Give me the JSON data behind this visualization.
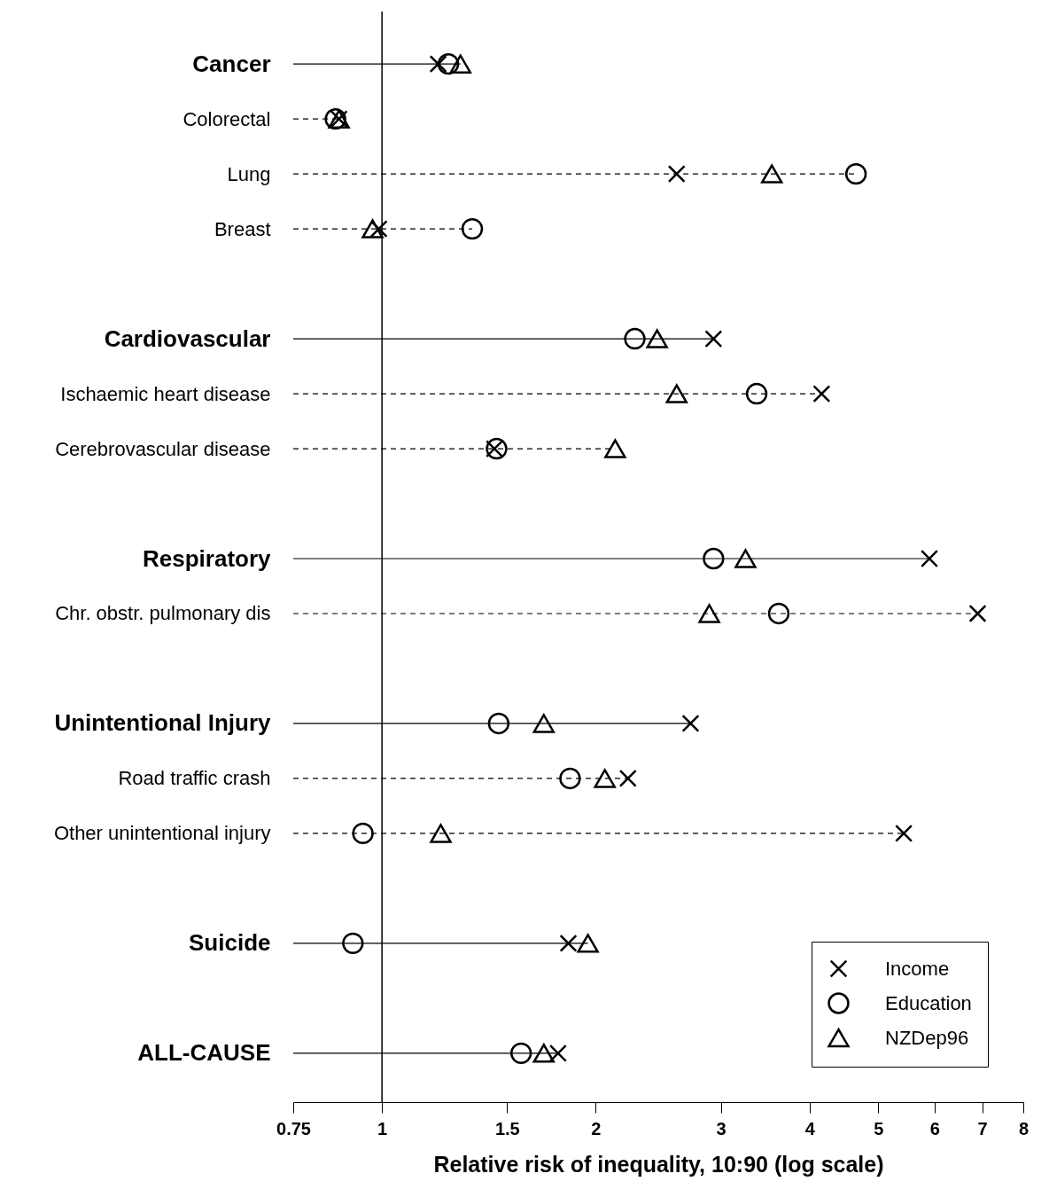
{
  "chart_data": {
    "type": "scatter",
    "orientation": "horizontal",
    "xlabel": "Relative risk of inequality, 10:90 (log scale)",
    "categories": [
      "Cancer",
      "Colorectal",
      "Lung",
      "Breast",
      null,
      "Cardiovascular",
      "Ischaemic heart disease",
      "Cerebrovascular disease",
      null,
      "Respiratory",
      "Chr. obstr. pulmonary dis",
      null,
      "Unintentional Injury",
      "Road traffic crash",
      "Other unintentional injury",
      null,
      "Suicide",
      null,
      "ALL-CAUSE"
    ],
    "series": [
      {
        "name": "Income",
        "color": "#000000",
        "marker": "cross",
        "values": [
          1.2,
          0.87,
          2.6,
          0.99,
          null,
          2.93,
          4.16,
          1.44,
          null,
          5.9,
          6.9,
          null,
          2.72,
          2.22,
          5.43,
          null,
          1.83,
          null,
          1.77
        ]
      },
      {
        "name": "Education",
        "color": "#000000",
        "marker": "circle",
        "values": [
          1.24,
          0.86,
          4.65,
          1.34,
          null,
          2.27,
          3.37,
          1.45,
          null,
          2.93,
          3.62,
          null,
          1.46,
          1.84,
          0.94,
          null,
          0.91,
          null,
          1.57
        ]
      },
      {
        "name": "NZDep96",
        "color": "#000000",
        "marker": "triangle",
        "values": [
          1.29,
          0.87,
          3.54,
          0.97,
          null,
          2.44,
          2.6,
          2.13,
          null,
          3.25,
          2.89,
          null,
          1.69,
          2.06,
          1.21,
          null,
          1.95,
          null,
          1.69
        ]
      }
    ],
    "log": "x",
    "xlim": [
      0.75,
      8
    ],
    "xticks": [
      0.75,
      1,
      1.5,
      2,
      3,
      4,
      5,
      6,
      7,
      8
    ],
    "grid": false,
    "legend": "bottom right",
    "ref_lines": [
      {
        "axis": "x",
        "value": 1,
        "label": null,
        "color": "#000000",
        "line_style": "solid"
      }
    ]
  }
}
